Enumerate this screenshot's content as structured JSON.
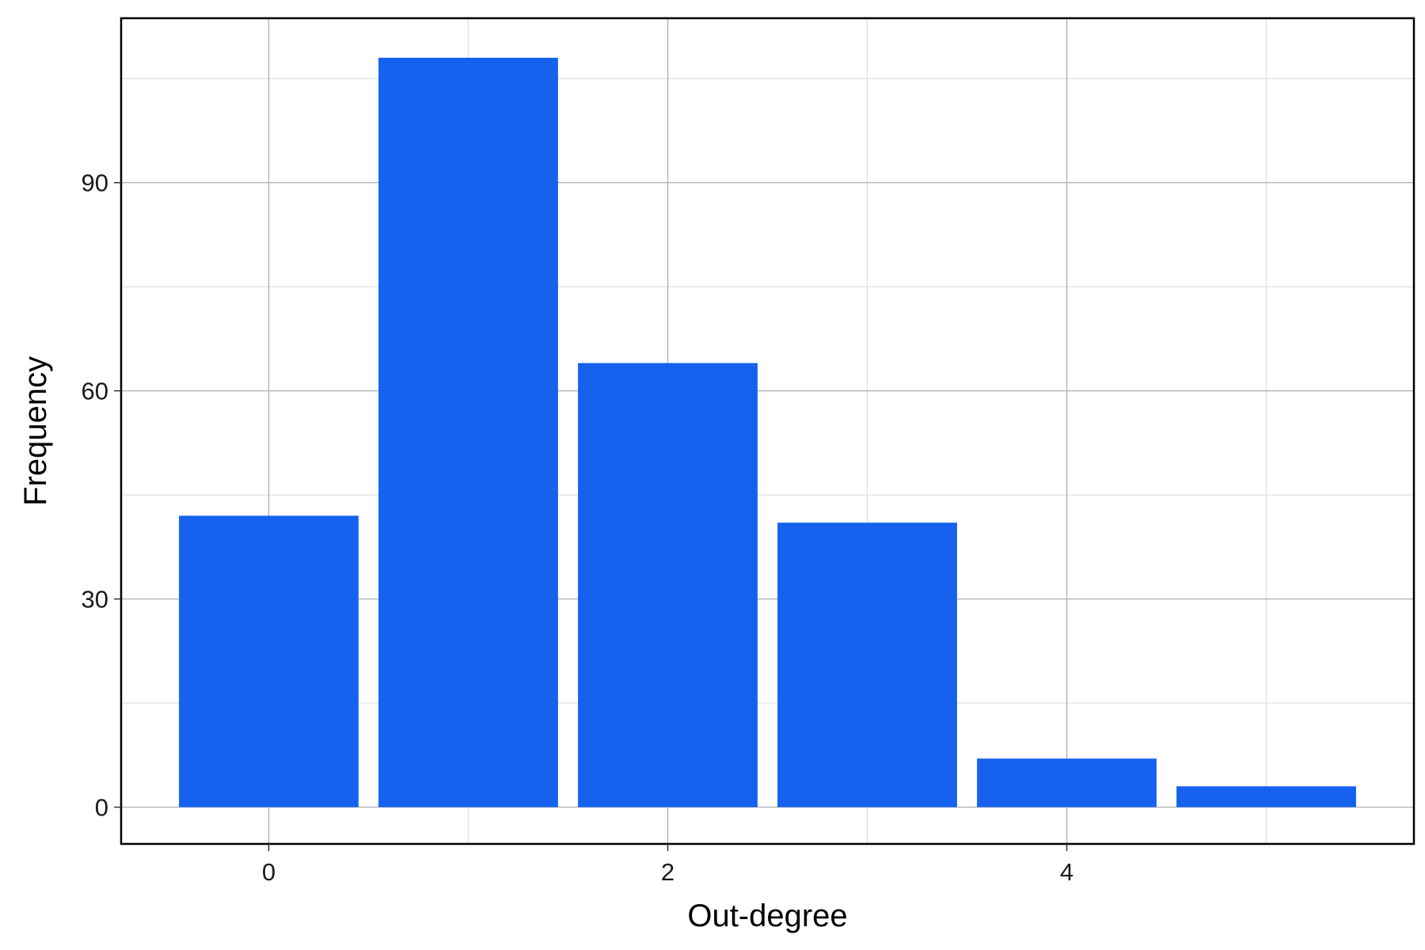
{
  "chart_data": {
    "type": "bar",
    "title": "",
    "xlabel": "Out-degree",
    "ylabel": "Frequency",
    "x": [
      0,
      1,
      2,
      3,
      4,
      5
    ],
    "values": [
      42,
      108,
      64,
      41,
      7,
      3
    ],
    "bar_width": 0.9,
    "xlim": [
      -0.74,
      5.74
    ],
    "ylim": [
      -5.3,
      113.7
    ],
    "x_ticks": [
      0,
      2,
      4
    ],
    "x_tick_labels": [
      "0",
      "2",
      "4"
    ],
    "x_minor_ticks": [
      1,
      3,
      5
    ],
    "y_ticks": [
      0,
      30,
      60,
      90
    ],
    "y_tick_labels": [
      "0",
      "30",
      "60",
      "90"
    ],
    "y_minor_ticks": [
      15,
      45,
      75,
      105
    ],
    "grid": true,
    "legend": "none",
    "colors": {
      "bar": "#1662EF",
      "grid_major": "#b4b4b4",
      "grid_minor": "#dedede",
      "frame": "#000000"
    }
  }
}
